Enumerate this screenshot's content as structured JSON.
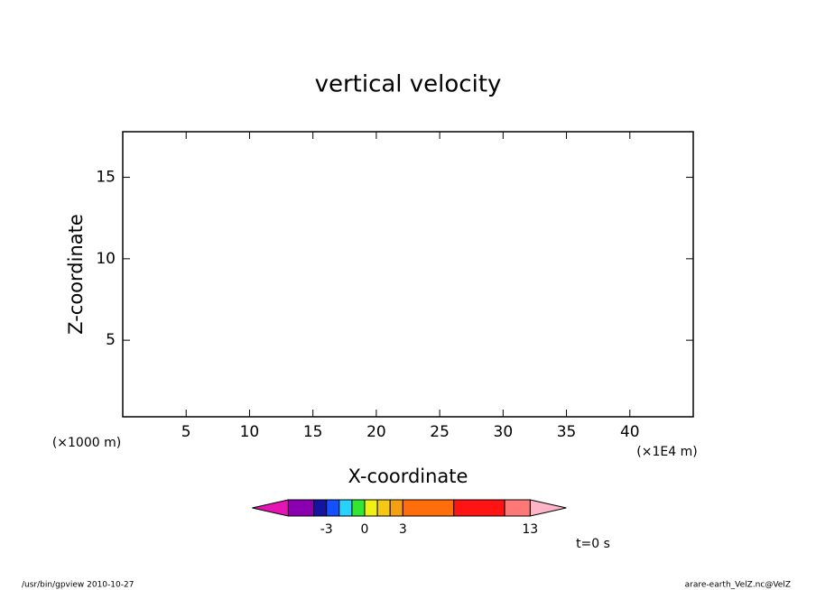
{
  "chart_data": {
    "type": "contour",
    "title": "vertical velocity",
    "x_label": "X-coordinate",
    "y_label": "Z-coordinate",
    "x_unit": "(×1E4 m)",
    "y_unit": "(×1000 m)",
    "xlim": [
      0,
      45
    ],
    "ylim": [
      0.3,
      17.8
    ],
    "xticks": [
      5,
      10,
      15,
      20,
      25,
      30,
      35,
      40
    ],
    "yticks": [
      5,
      10,
      15
    ],
    "colorbar": {
      "levels": [
        -6,
        -4,
        -3,
        -2,
        -1,
        0,
        1,
        2,
        3,
        7,
        11,
        13
      ],
      "colors": [
        "#8a00b0",
        "#1414a0",
        "#1450ff",
        "#28d2ff",
        "#32e632",
        "#f0f014",
        "#f5c814",
        "#f5a014",
        "#ff6e0a",
        "#ff1414",
        "#ff7878"
      ],
      "under_color": "#e614b4",
      "over_color": "#ffb4c8",
      "ticks": [
        -3,
        0,
        3,
        13
      ]
    },
    "annotation": "t=0 s",
    "footer_left": "/usr/bin/gpview   2010-10-27",
    "footer_right": "arare-earth_VelZ.nc@VelZ"
  }
}
